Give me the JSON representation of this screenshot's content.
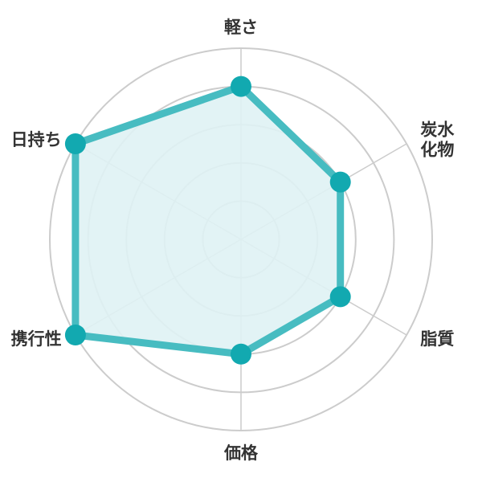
{
  "chart_data": {
    "type": "radar",
    "categories": [
      [
        "軽さ"
      ],
      [
        "炭水",
        "化物"
      ],
      [
        "脂質"
      ],
      [
        "価格"
      ],
      [
        "携行性"
      ],
      [
        "日持ち"
      ]
    ],
    "values": [
      4,
      3,
      3,
      3,
      5,
      5
    ],
    "rmax": 5,
    "ring_count": 5,
    "grid": true,
    "colors": {
      "line": "#47bcc1",
      "fill": "#dff2f4",
      "point": "#12a9b0",
      "grid": "#cccccc",
      "label": "#333333"
    }
  }
}
